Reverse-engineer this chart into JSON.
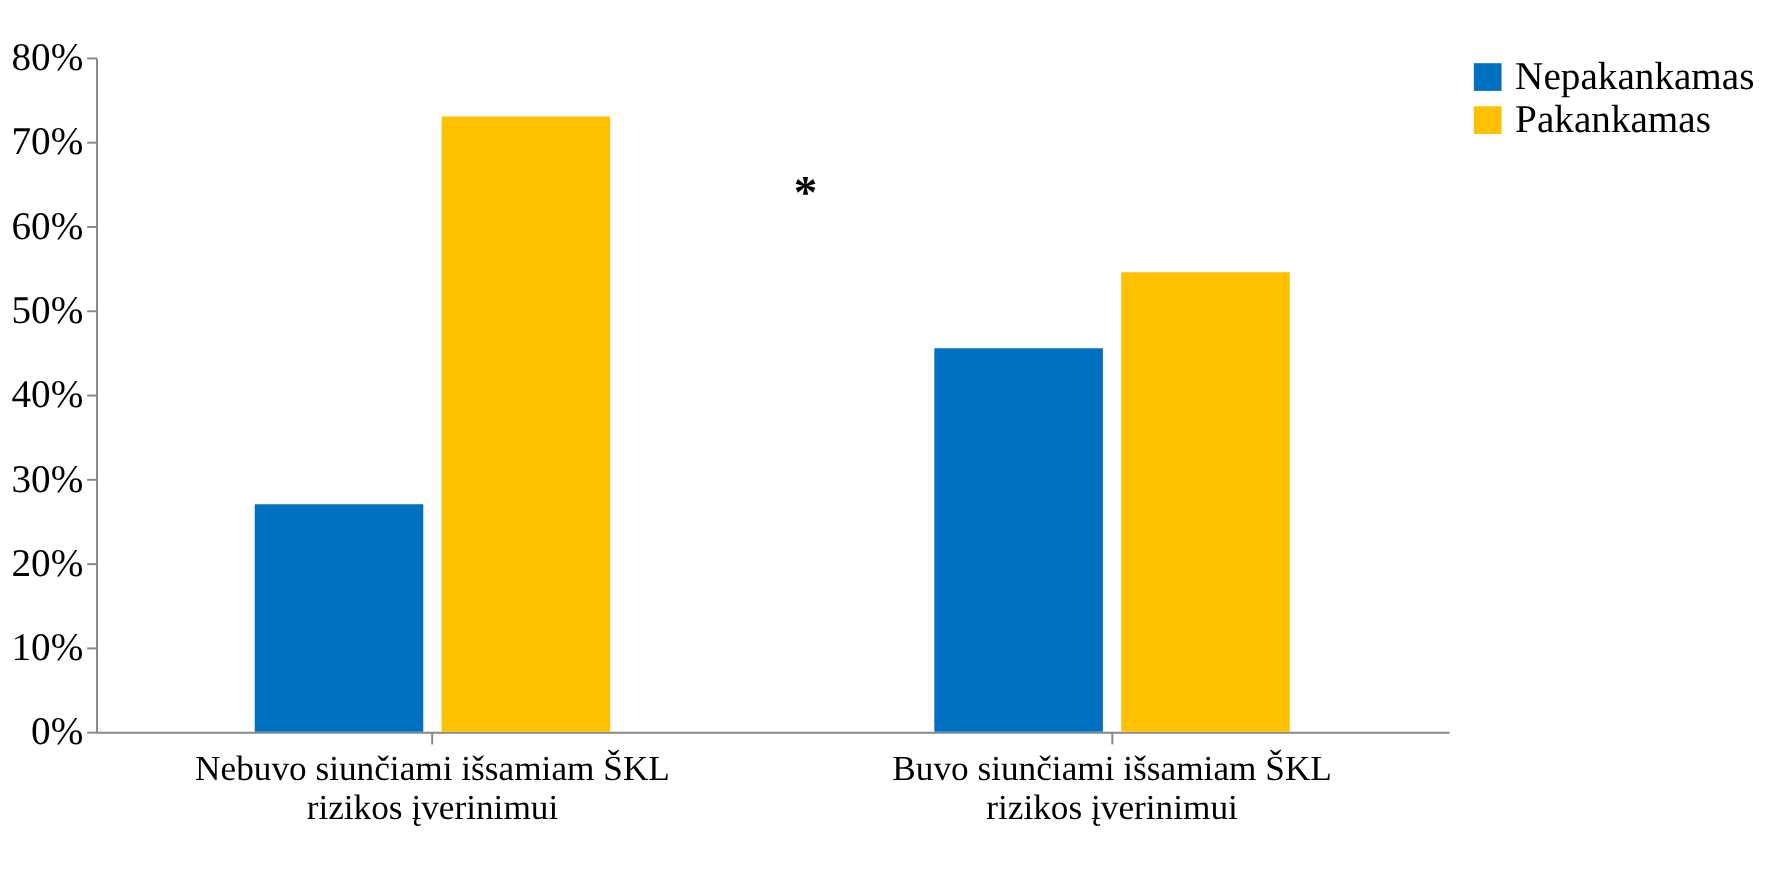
{
  "chart_data": {
    "type": "bar",
    "categories": [
      "Nebuvo siunčiami išsamiam ŠKL\nrizikos įverinimui",
      "Buvo siunčiami išsamiam ŠKL\nrizikos įverinimui"
    ],
    "series": [
      {
        "name": "Nepakankamas",
        "color": "#0070c0",
        "values": [
          27,
          45.5
        ]
      },
      {
        "name": "Pakankamas",
        "color": "#ffc000",
        "values": [
          73,
          54.5
        ]
      }
    ],
    "ylim": [
      0,
      80
    ],
    "yticks": [
      {
        "value": 0,
        "label": "0%"
      },
      {
        "value": 10,
        "label": "10%"
      },
      {
        "value": 20,
        "label": "20%"
      },
      {
        "value": 30,
        "label": "30%"
      },
      {
        "value": 40,
        "label": "40%"
      },
      {
        "value": 50,
        "label": "50%"
      },
      {
        "value": 60,
        "label": "60%"
      },
      {
        "value": 70,
        "label": "70%"
      },
      {
        "value": 80,
        "label": "80%"
      }
    ],
    "grid": false,
    "legend": "top right",
    "annotations": [
      "*"
    ]
  }
}
